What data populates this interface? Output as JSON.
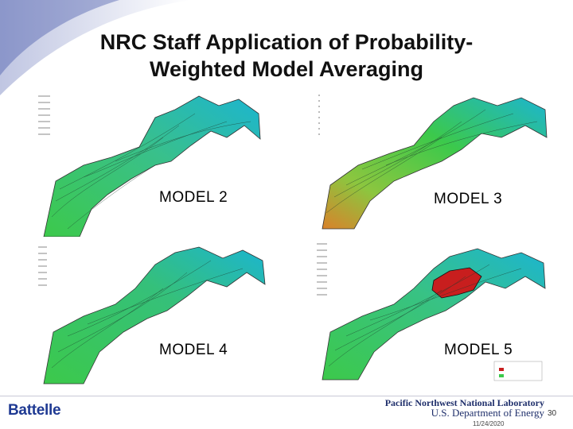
{
  "slide": {
    "title_line1": "NRC Staff Application of Probability-",
    "title_line2": "Weighted Model Averaging",
    "panels": [
      {
        "label": "MODEL 2"
      },
      {
        "label": "MODEL 3"
      },
      {
        "label": "MODEL 4"
      },
      {
        "label": "MODEL 5"
      }
    ]
  },
  "footer": {
    "org_left": "Battelle",
    "org_right_line1": "Pacific Northwest National Laboratory",
    "org_right_line2": "U.S. Department of Energy",
    "page_number": "30",
    "date": "11/24/2020"
  },
  "colors": {
    "accent_blue": "#1f3a93",
    "terrain_green": "#3fc94a",
    "terrain_cyan": "#1fb7c9",
    "terrain_orange": "#d9822b",
    "hotspot_red": "#c81e1e"
  }
}
